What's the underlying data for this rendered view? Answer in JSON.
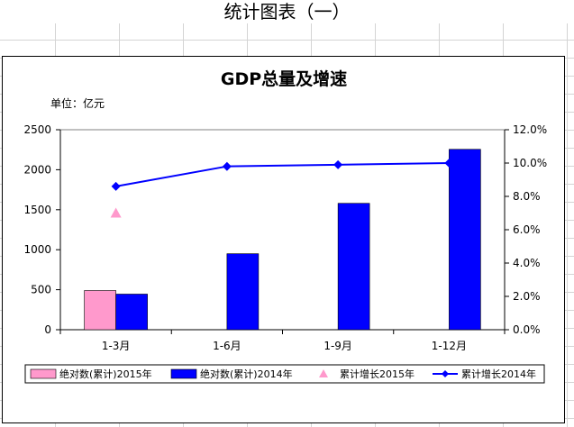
{
  "sheet_title": "统计图表（一）",
  "chart_data": {
    "type": "bar",
    "title": "GDP总量及增速",
    "unit_label": "单位：亿元",
    "categories": [
      "1-3月",
      "1-6月",
      "1-9月",
      "1-12月"
    ],
    "y_left": {
      "min": 0,
      "max": 2500,
      "step": 500,
      "ticks": [
        "0",
        "500",
        "1000",
        "1500",
        "2000",
        "2500"
      ]
    },
    "y_right": {
      "min": 0,
      "max": 12,
      "step": 2,
      "ticks": [
        "0.0%",
        "2.0%",
        "4.0%",
        "6.0%",
        "8.0%",
        "10.0%",
        "12.0%"
      ]
    },
    "series": [
      {
        "name": "绝对数(累计)2015年",
        "type": "bar",
        "axis": "left",
        "color": "#ff99cc",
        "values": [
          490,
          null,
          null,
          null
        ]
      },
      {
        "name": "绝对数(累计)2014年",
        "type": "bar",
        "axis": "left",
        "color": "#0000ff",
        "values": [
          445,
          950,
          1580,
          2255
        ]
      },
      {
        "name": "累计增长2015年",
        "type": "marker",
        "marker": "triangle",
        "axis": "right",
        "color": "#ff99cc",
        "values": [
          7.0,
          null,
          null,
          null
        ]
      },
      {
        "name": "累计增长2014年",
        "type": "line",
        "marker": "diamond",
        "axis": "right",
        "color": "#0000ff",
        "values": [
          8.6,
          9.8,
          9.9,
          10.0
        ]
      }
    ],
    "grid": false,
    "legend_position": "bottom"
  }
}
